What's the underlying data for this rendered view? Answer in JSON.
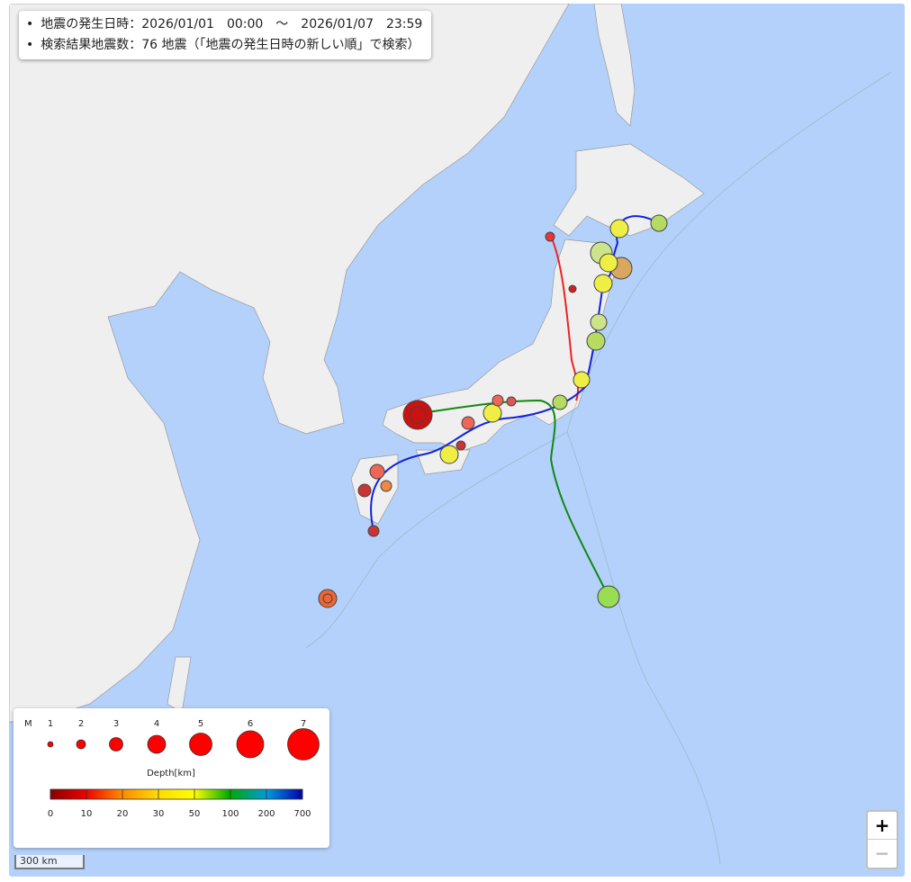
{
  "info": {
    "lines": [
      "地震の発生日時：2026/01/01　00:00　～　2026/01/07　23:59",
      "検索結果地震数：76 地震（「地震の発生日時の新しい順」で検索）"
    ]
  },
  "legend": {
    "magnitude_label": "M",
    "magnitudes": [
      "1",
      "2",
      "3",
      "4",
      "5",
      "6",
      "7"
    ],
    "depth_label": "Depth[km]",
    "depth_ticks": [
      "0",
      "10",
      "20",
      "30",
      "50",
      "100",
      "200",
      "700"
    ]
  },
  "scale": "300 km",
  "zoom": {
    "in": "+",
    "out": "−"
  }
}
